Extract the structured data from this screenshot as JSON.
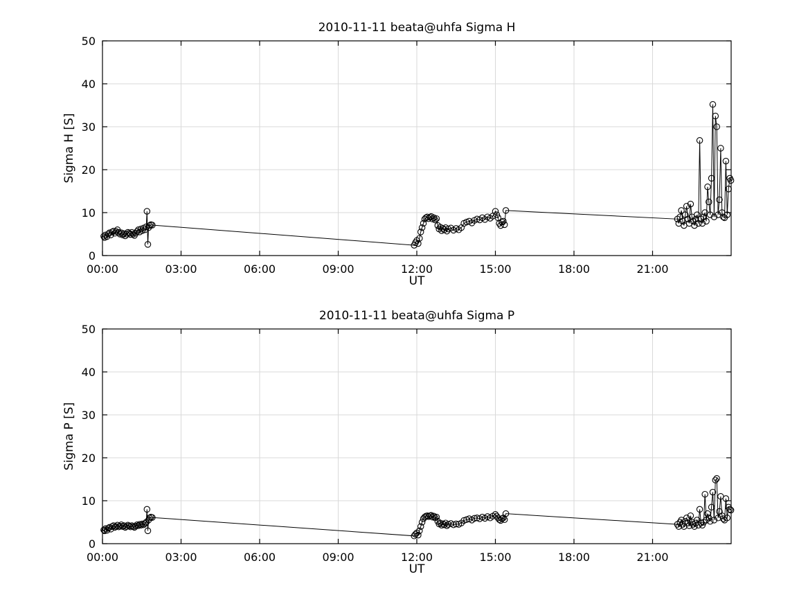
{
  "page": {
    "background": "#ffffff",
    "axis_color": "#000000",
    "grid_color": "#d9d9d9"
  },
  "chart_data": [
    {
      "type": "line",
      "title": "2010-11-11  beata@uhfa Sigma H",
      "xlabel": "UT",
      "ylabel": "Sigma H [S]",
      "xlim": [
        0,
        24
      ],
      "ylim": [
        0,
        50
      ],
      "xtick_values": [
        0,
        3,
        6,
        9,
        12,
        15,
        18,
        21
      ],
      "xtick_labels": [
        "00:00",
        "03:00",
        "06:00",
        "09:00",
        "12:00",
        "15:00",
        "18:00",
        "21:00"
      ],
      "ytick_values": [
        0,
        10,
        20,
        30,
        40,
        50
      ],
      "grid": true,
      "legend": "none",
      "marker": "circle",
      "line_color": "#000000",
      "points": [
        [
          0.05,
          4.5
        ],
        [
          0.08,
          4.2
        ],
        [
          0.12,
          4.8
        ],
        [
          0.17,
          4.4
        ],
        [
          0.22,
          5.0
        ],
        [
          0.27,
          5.3
        ],
        [
          0.32,
          4.8
        ],
        [
          0.37,
          5.5
        ],
        [
          0.42,
          5.7
        ],
        [
          0.47,
          5.2
        ],
        [
          0.52,
          5.6
        ],
        [
          0.57,
          6.0
        ],
        [
          0.62,
          5.4
        ],
        [
          0.67,
          5.0
        ],
        [
          0.72,
          5.3
        ],
        [
          0.77,
          4.8
        ],
        [
          0.82,
          5.1
        ],
        [
          0.87,
          4.6
        ],
        [
          0.92,
          5.0
        ],
        [
          0.97,
          5.4
        ],
        [
          1.02,
          5.2
        ],
        [
          1.07,
          4.9
        ],
        [
          1.12,
          5.4
        ],
        [
          1.17,
          5.0
        ],
        [
          1.22,
          4.7
        ],
        [
          1.27,
          5.2
        ],
        [
          1.32,
          5.6
        ],
        [
          1.37,
          6.0
        ],
        [
          1.42,
          5.5
        ],
        [
          1.47,
          6.2
        ],
        [
          1.52,
          5.8
        ],
        [
          1.57,
          6.4
        ],
        [
          1.62,
          6.0
        ],
        [
          1.67,
          6.7
        ],
        [
          1.7,
          10.3
        ],
        [
          1.73,
          2.6
        ],
        [
          1.76,
          6.5
        ],
        [
          1.8,
          7.0
        ],
        [
          1.85,
          7.2
        ],
        [
          1.9,
          7.1
        ],
        [
          11.9,
          2.4
        ],
        [
          11.95,
          3.0
        ],
        [
          12.0,
          3.5
        ],
        [
          12.05,
          2.8
        ],
        [
          12.1,
          4.0
        ],
        [
          12.15,
          5.5
        ],
        [
          12.2,
          6.5
        ],
        [
          12.25,
          7.5
        ],
        [
          12.3,
          8.5
        ],
        [
          12.35,
          8.8
        ],
        [
          12.4,
          9.0
        ],
        [
          12.45,
          8.6
        ],
        [
          12.5,
          8.9
        ],
        [
          12.55,
          9.1
        ],
        [
          12.6,
          8.5
        ],
        [
          12.65,
          8.8
        ],
        [
          12.7,
          8.3
        ],
        [
          12.75,
          8.6
        ],
        [
          12.8,
          7.0
        ],
        [
          12.85,
          6.2
        ],
        [
          12.9,
          6.6
        ],
        [
          12.95,
          5.8
        ],
        [
          13.0,
          6.3
        ],
        [
          13.05,
          6.0
        ],
        [
          13.1,
          6.5
        ],
        [
          13.15,
          5.7
        ],
        [
          13.2,
          6.2
        ],
        [
          13.3,
          6.4
        ],
        [
          13.4,
          5.9
        ],
        [
          13.5,
          6.3
        ],
        [
          13.6,
          6.0
        ],
        [
          13.7,
          6.5
        ],
        [
          13.8,
          7.5
        ],
        [
          13.9,
          7.8
        ],
        [
          14.0,
          8.0
        ],
        [
          14.1,
          7.6
        ],
        [
          14.2,
          8.2
        ],
        [
          14.3,
          8.5
        ],
        [
          14.4,
          8.3
        ],
        [
          14.5,
          8.8
        ],
        [
          14.6,
          8.4
        ],
        [
          14.7,
          9.0
        ],
        [
          14.8,
          8.7
        ],
        [
          14.9,
          9.2
        ],
        [
          15.0,
          10.3
        ],
        [
          15.05,
          9.5
        ],
        [
          15.1,
          8.8
        ],
        [
          15.15,
          7.5
        ],
        [
          15.2,
          7.0
        ],
        [
          15.25,
          7.8
        ],
        [
          15.3,
          8.0
        ],
        [
          15.35,
          7.2
        ],
        [
          15.4,
          10.5
        ],
        [
          21.95,
          8.5
        ],
        [
          22.0,
          7.5
        ],
        [
          22.05,
          9.0
        ],
        [
          22.1,
          10.5
        ],
        [
          22.15,
          8.0
        ],
        [
          22.2,
          7.0
        ],
        [
          22.25,
          9.5
        ],
        [
          22.3,
          11.5
        ],
        [
          22.35,
          8.5
        ],
        [
          22.4,
          7.5
        ],
        [
          22.45,
          12.0
        ],
        [
          22.5,
          9.0
        ],
        [
          22.55,
          8.0
        ],
        [
          22.6,
          7.0
        ],
        [
          22.65,
          8.5
        ],
        [
          22.7,
          9.5
        ],
        [
          22.75,
          7.5
        ],
        [
          22.8,
          26.8
        ],
        [
          22.85,
          8.5
        ],
        [
          22.9,
          7.5
        ],
        [
          22.95,
          9.0
        ],
        [
          23.0,
          10.0
        ],
        [
          23.05,
          8.0
        ],
        [
          23.1,
          16.0
        ],
        [
          23.15,
          12.5
        ],
        [
          23.2,
          9.5
        ],
        [
          23.25,
          18.0
        ],
        [
          23.3,
          35.2
        ],
        [
          23.35,
          9.0
        ],
        [
          23.4,
          32.5
        ],
        [
          23.45,
          30.0
        ],
        [
          23.5,
          9.5
        ],
        [
          23.55,
          13.0
        ],
        [
          23.6,
          25.0
        ],
        [
          23.65,
          10.0
        ],
        [
          23.7,
          9.0
        ],
        [
          23.75,
          8.8
        ],
        [
          23.8,
          22.0
        ],
        [
          23.85,
          9.5
        ],
        [
          23.9,
          15.5
        ],
        [
          23.95,
          18.0
        ],
        [
          23.99,
          17.5
        ]
      ]
    },
    {
      "type": "line",
      "title": "2010-11-11  beata@uhfa Sigma P",
      "xlabel": "UT",
      "ylabel": "Sigma P [S]",
      "xlim": [
        0,
        24
      ],
      "ylim": [
        0,
        50
      ],
      "xtick_values": [
        0,
        3,
        6,
        9,
        12,
        15,
        18,
        21
      ],
      "xtick_labels": [
        "00:00",
        "03:00",
        "06:00",
        "09:00",
        "12:00",
        "15:00",
        "18:00",
        "21:00"
      ],
      "ytick_values": [
        0,
        10,
        20,
        30,
        40,
        50
      ],
      "grid": true,
      "legend": "none",
      "marker": "circle",
      "line_color": "#000000",
      "points": [
        [
          0.05,
          3.2
        ],
        [
          0.08,
          3.0
        ],
        [
          0.12,
          3.5
        ],
        [
          0.17,
          3.1
        ],
        [
          0.22,
          3.6
        ],
        [
          0.27,
          3.8
        ],
        [
          0.32,
          3.4
        ],
        [
          0.37,
          4.0
        ],
        [
          0.42,
          4.2
        ],
        [
          0.47,
          3.8
        ],
        [
          0.52,
          4.0
        ],
        [
          0.57,
          4.3
        ],
        [
          0.62,
          3.9
        ],
        [
          0.67,
          4.1
        ],
        [
          0.72,
          4.4
        ],
        [
          0.77,
          4.0
        ],
        [
          0.82,
          4.2
        ],
        [
          0.87,
          3.8
        ],
        [
          0.92,
          4.0
        ],
        [
          0.97,
          4.3
        ],
        [
          1.02,
          4.1
        ],
        [
          1.07,
          3.9
        ],
        [
          1.12,
          4.2
        ],
        [
          1.17,
          4.0
        ],
        [
          1.22,
          3.8
        ],
        [
          1.27,
          4.1
        ],
        [
          1.32,
          4.4
        ],
        [
          1.37,
          4.2
        ],
        [
          1.42,
          4.5
        ],
        [
          1.47,
          4.3
        ],
        [
          1.52,
          4.6
        ],
        [
          1.57,
          4.4
        ],
        [
          1.62,
          4.7
        ],
        [
          1.67,
          5.0
        ],
        [
          1.7,
          8.0
        ],
        [
          1.73,
          3.0
        ],
        [
          1.76,
          5.5
        ],
        [
          1.8,
          6.0
        ],
        [
          1.85,
          6.2
        ],
        [
          1.9,
          6.1
        ],
        [
          11.9,
          1.8
        ],
        [
          11.95,
          2.2
        ],
        [
          12.0,
          2.5
        ],
        [
          12.05,
          2.0
        ],
        [
          12.1,
          3.0
        ],
        [
          12.15,
          4.0
        ],
        [
          12.2,
          5.0
        ],
        [
          12.25,
          5.8
        ],
        [
          12.3,
          6.2
        ],
        [
          12.35,
          6.4
        ],
        [
          12.4,
          6.5
        ],
        [
          12.45,
          6.3
        ],
        [
          12.5,
          6.5
        ],
        [
          12.55,
          6.6
        ],
        [
          12.6,
          6.2
        ],
        [
          12.65,
          6.4
        ],
        [
          12.7,
          6.0
        ],
        [
          12.75,
          6.2
        ],
        [
          12.8,
          5.2
        ],
        [
          12.85,
          4.6
        ],
        [
          12.9,
          4.8
        ],
        [
          12.95,
          4.3
        ],
        [
          13.0,
          4.6
        ],
        [
          13.05,
          4.4
        ],
        [
          13.1,
          4.8
        ],
        [
          13.15,
          4.2
        ],
        [
          13.2,
          4.5
        ],
        [
          13.3,
          4.7
        ],
        [
          13.4,
          4.4
        ],
        [
          13.5,
          4.6
        ],
        [
          13.6,
          4.5
        ],
        [
          13.7,
          4.8
        ],
        [
          13.8,
          5.4
        ],
        [
          13.9,
          5.6
        ],
        [
          14.0,
          5.8
        ],
        [
          14.1,
          5.5
        ],
        [
          14.2,
          5.9
        ],
        [
          14.3,
          6.0
        ],
        [
          14.4,
          5.8
        ],
        [
          14.5,
          6.2
        ],
        [
          14.6,
          5.9
        ],
        [
          14.7,
          6.3
        ],
        [
          14.8,
          6.0
        ],
        [
          14.9,
          6.4
        ],
        [
          15.0,
          6.8
        ],
        [
          15.05,
          6.4
        ],
        [
          15.1,
          6.0
        ],
        [
          15.15,
          5.6
        ],
        [
          15.2,
          5.4
        ],
        [
          15.25,
          5.8
        ],
        [
          15.3,
          6.0
        ],
        [
          15.35,
          5.6
        ],
        [
          15.4,
          7.0
        ],
        [
          21.95,
          4.5
        ],
        [
          22.0,
          4.0
        ],
        [
          22.05,
          5.0
        ],
        [
          22.1,
          5.5
        ],
        [
          22.15,
          4.5
        ],
        [
          22.2,
          4.0
        ],
        [
          22.25,
          5.2
        ],
        [
          22.3,
          6.0
        ],
        [
          22.35,
          4.8
        ],
        [
          22.4,
          4.2
        ],
        [
          22.45,
          6.5
        ],
        [
          22.5,
          5.0
        ],
        [
          22.55,
          4.5
        ],
        [
          22.6,
          4.0
        ],
        [
          22.65,
          4.8
        ],
        [
          22.7,
          5.5
        ],
        [
          22.75,
          4.3
        ],
        [
          22.8,
          8.0
        ],
        [
          22.85,
          4.8
        ],
        [
          22.9,
          4.3
        ],
        [
          22.95,
          5.0
        ],
        [
          23.0,
          11.5
        ],
        [
          23.05,
          5.5
        ],
        [
          23.1,
          7.0
        ],
        [
          23.15,
          6.0
        ],
        [
          23.2,
          5.2
        ],
        [
          23.25,
          8.5
        ],
        [
          23.3,
          12.0
        ],
        [
          23.35,
          5.5
        ],
        [
          23.4,
          14.8
        ],
        [
          23.45,
          15.2
        ],
        [
          23.5,
          6.0
        ],
        [
          23.55,
          7.5
        ],
        [
          23.6,
          11.0
        ],
        [
          23.65,
          6.5
        ],
        [
          23.7,
          5.8
        ],
        [
          23.75,
          5.5
        ],
        [
          23.8,
          10.5
        ],
        [
          23.85,
          6.0
        ],
        [
          23.9,
          8.5
        ],
        [
          23.95,
          8.0
        ],
        [
          23.99,
          7.8
        ]
      ]
    }
  ]
}
